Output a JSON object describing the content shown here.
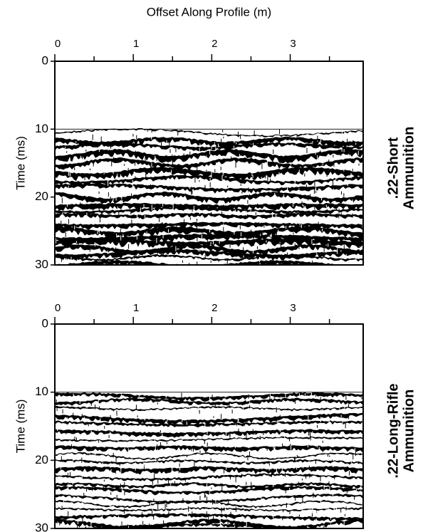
{
  "chart_data": [
    {
      "type": "section",
      "xlabel": "Offset Along Profile (m)",
      "ylabel": "Time (ms)",
      "label": [
        ".22-Short",
        "Ammunition"
      ],
      "xlim": [
        0,
        3.93
      ],
      "xticks": [
        0,
        1,
        2,
        3
      ],
      "xminor_ticks": [
        0.5,
        1.5,
        2.5,
        3.5
      ],
      "ylim": [
        0,
        30
      ],
      "yticks": [
        0,
        10,
        20,
        30
      ],
      "y_inverted": true,
      "data_start": 10
    },
    {
      "type": "section",
      "ylabel": "Time (ms)",
      "label": [
        ".22-Long-Rifle",
        "Ammunition"
      ],
      "xlim": [
        0,
        3.93
      ],
      "xticks": [
        0,
        1,
        2,
        3
      ],
      "xminor_ticks": [
        0.5,
        1.5,
        2.5,
        3.5
      ],
      "ylim": [
        0,
        30
      ],
      "yticks": [
        0,
        10,
        20,
        30
      ],
      "y_inverted": true,
      "data_start": 10
    }
  ]
}
